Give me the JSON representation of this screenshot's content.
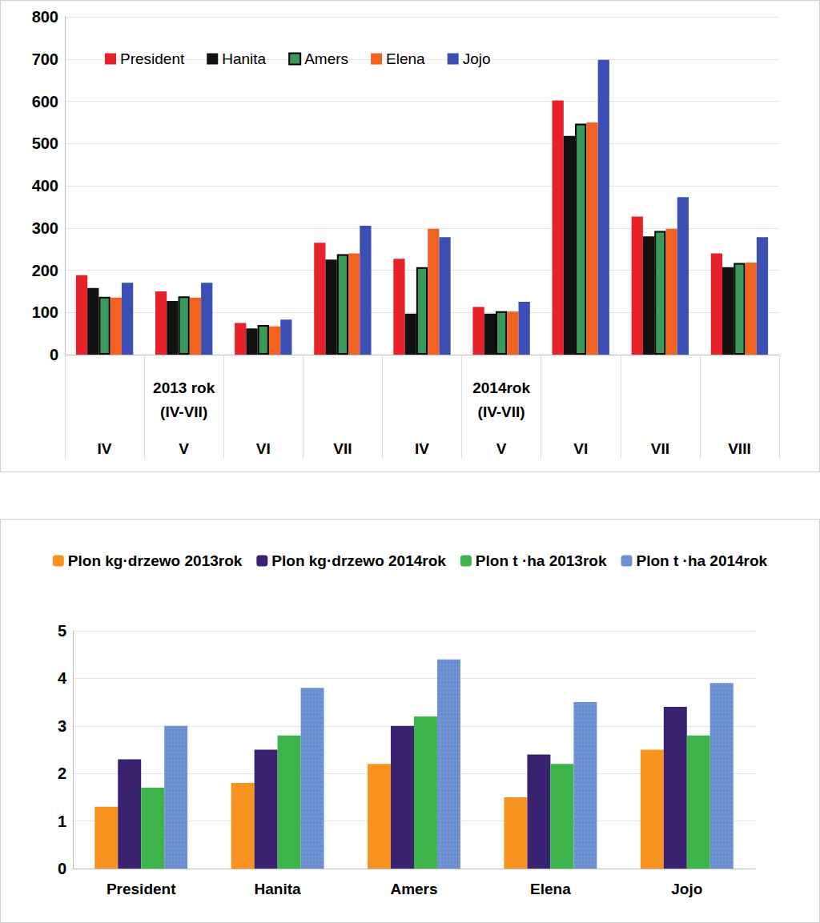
{
  "chart_data": [
    {
      "type": "bar",
      "categories": [
        "IV",
        "V",
        "VI",
        "VII",
        "IV",
        "V",
        "VI",
        "VII",
        "VIII"
      ],
      "annotations": [
        {
          "text": "2013 rok\n(IV-VII)",
          "category_index": 1
        },
        {
          "text": "2014rok\n(IV-VII)",
          "category_index": 5
        }
      ],
      "series": [
        {
          "name": "President",
          "color": "#e8202a",
          "values": [
            188,
            150,
            75,
            265,
            227,
            113,
            602,
            327,
            240
          ]
        },
        {
          "name": "Hanita",
          "color": "#111111",
          "values": [
            158,
            127,
            62,
            225,
            97,
            97,
            518,
            280,
            207
          ]
        },
        {
          "name": "Amers",
          "color": "#3a9a5a",
          "values": [
            137,
            138,
            70,
            238,
            207,
            103,
            547,
            293,
            217
          ]
        },
        {
          "name": "Elena",
          "color": "#f26322",
          "values": [
            135,
            135,
            67,
            240,
            298,
            102,
            550,
            298,
            218
          ]
        },
        {
          "name": "Jojo",
          "color": "#3c4fb5",
          "values": [
            170,
            170,
            83,
            305,
            278,
            125,
            698,
            373,
            278
          ]
        }
      ],
      "ylim": [
        0,
        800
      ],
      "yticks": [
        0,
        100,
        200,
        300,
        400,
        500,
        600,
        700,
        800
      ],
      "grid": true,
      "legend": "top"
    },
    {
      "type": "bar",
      "categories": [
        "President",
        "Hanita",
        "Amers",
        "Elena",
        "Jojo"
      ],
      "series": [
        {
          "name": "Plon kg·drzewo 2013rok",
          "color": "#f7931e",
          "values": [
            1.3,
            1.8,
            2.2,
            1.5,
            2.5
          ]
        },
        {
          "name": "Plon kg·drzewo 2014rok",
          "color": "#3b2270",
          "values": [
            2.3,
            2.5,
            3.0,
            2.4,
            3.4
          ]
        },
        {
          "name": "Plon t ·ha 2013rok",
          "color": "#3cb44a",
          "values": [
            1.7,
            2.8,
            3.2,
            2.2,
            2.8
          ]
        },
        {
          "name": "Plon t ·ha 2014rok",
          "color": "#6a8fd0",
          "values": [
            3.0,
            3.8,
            4.4,
            3.5,
            3.9
          ]
        }
      ],
      "ylim": [
        0,
        5
      ],
      "yticks": [
        0,
        1,
        2,
        3,
        4,
        5
      ],
      "grid": true,
      "legend": "top"
    }
  ]
}
